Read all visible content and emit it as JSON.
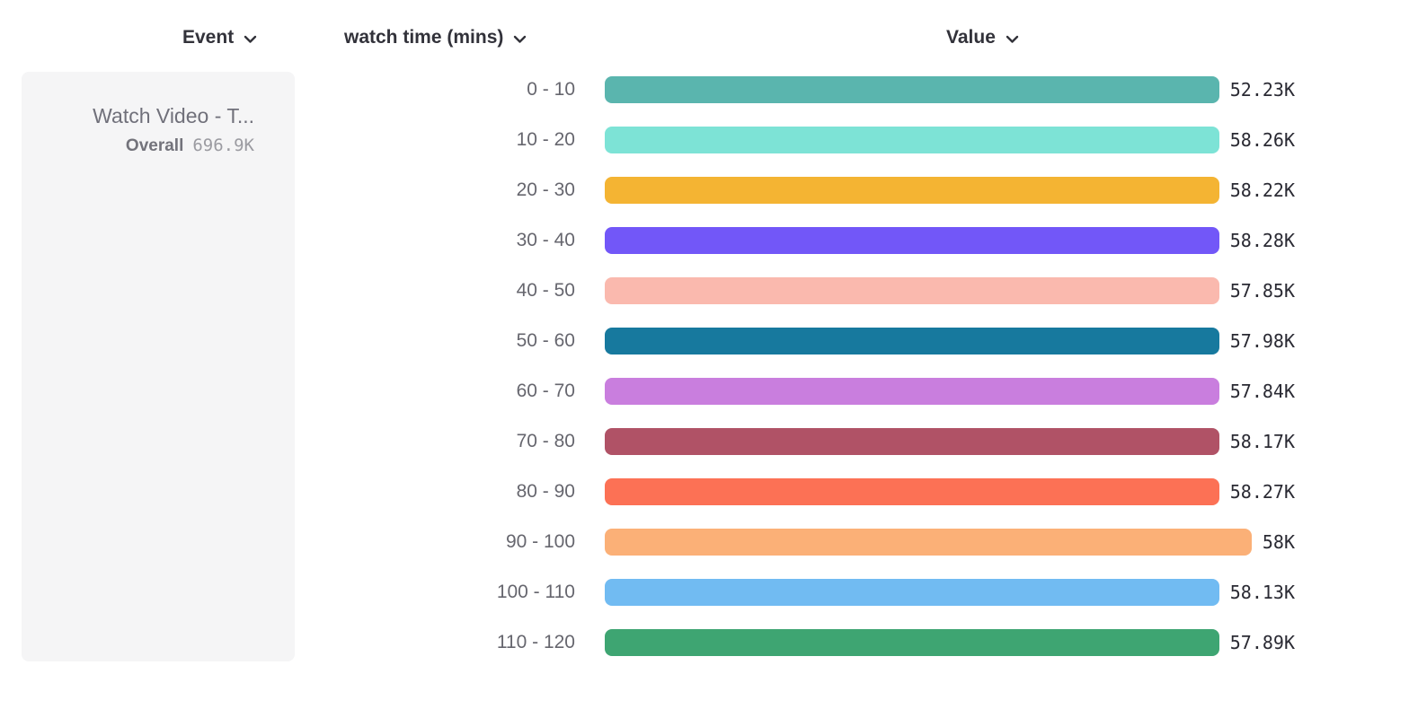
{
  "header": {
    "columns": [
      {
        "label": "Event"
      },
      {
        "label": "watch time (mins)"
      },
      {
        "label": "Value"
      }
    ]
  },
  "event_card": {
    "name": "Watch Video - T...",
    "overall_label": "Overall",
    "overall_value": "696.9K"
  },
  "chart_data": {
    "type": "bar",
    "orientation": "horizontal",
    "title": "",
    "xlabel": "Value",
    "ylabel": "watch time (mins)",
    "grid": false,
    "legend": "none",
    "xlim": [
      0,
      58280
    ],
    "categories": [
      "0 - 10",
      "10 - 20",
      "20 - 30",
      "30 - 40",
      "40 - 50",
      "50 - 60",
      "60 - 70",
      "70 - 80",
      "80 - 90",
      "90 - 100",
      "100 - 110",
      "110 - 120"
    ],
    "values": [
      52230,
      58260,
      58220,
      58280,
      57850,
      57980,
      57840,
      58170,
      58270,
      58000,
      58130,
      57890
    ],
    "value_labels": [
      "52.23K",
      "58.26K",
      "58.22K",
      "58.28K",
      "57.85K",
      "57.98K",
      "57.84K",
      "58.17K",
      "58.27K",
      "58K",
      "58.13K",
      "57.89K"
    ],
    "colors": [
      "#5ab5ae",
      "#7de3d6",
      "#f4b433",
      "#7257f8",
      "#fab9ae",
      "#17799e",
      "#c97ede",
      "#b05266",
      "#fc7155",
      "#fbb077",
      "#71bbf2",
      "#3ea572"
    ]
  },
  "colors": {
    "card_background": "#f5f5f6",
    "header_text": "#32323a",
    "category_text": "#66666e",
    "value_text": "#2a2a33",
    "event_name_text": "#70707a",
    "overall_value_text": "#9b9ba1"
  }
}
